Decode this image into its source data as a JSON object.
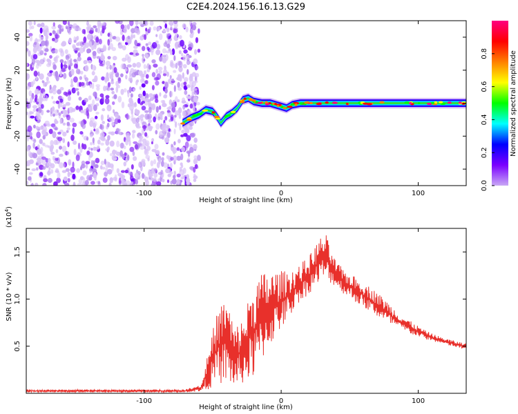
{
  "title": "C2E4.2024.156.16.13.G29",
  "chart_data": [
    {
      "type": "heatmap",
      "xlabel": "Height of straight line (km)",
      "ylabel": "Frequency (Hz)",
      "xlim": [
        -186,
        135
      ],
      "ylim": [
        -50,
        50
      ],
      "x_ticks": [
        -100,
        0,
        100
      ],
      "y_ticks": [
        -40,
        -20,
        0,
        20,
        40
      ],
      "noise_region_x": [
        -186,
        -66
      ],
      "signal_trace": [
        {
          "x": -72,
          "y": -12
        },
        {
          "x": -66,
          "y": -9
        },
        {
          "x": -60,
          "y": -7
        },
        {
          "x": -55,
          "y": -4
        },
        {
          "x": -50,
          "y": -5
        },
        {
          "x": -47,
          "y": -8
        },
        {
          "x": -44,
          "y": -12
        },
        {
          "x": -40,
          "y": -8
        },
        {
          "x": -36,
          "y": -6
        },
        {
          "x": -32,
          "y": -3
        },
        {
          "x": -28,
          "y": 2
        },
        {
          "x": -24,
          "y": 3
        },
        {
          "x": -20,
          "y": 1
        },
        {
          "x": -14,
          "y": 0
        },
        {
          "x": -8,
          "y": 0
        },
        {
          "x": -4,
          "y": -1
        },
        {
          "x": 0,
          "y": -2
        },
        {
          "x": 4,
          "y": -3
        },
        {
          "x": 8,
          "y": -1
        },
        {
          "x": 14,
          "y": 0
        },
        {
          "x": 20,
          "y": 0
        },
        {
          "x": 30,
          "y": 0
        },
        {
          "x": 40,
          "y": 0
        },
        {
          "x": 50,
          "y": 0
        },
        {
          "x": 60,
          "y": 0
        },
        {
          "x": 70,
          "y": 0
        },
        {
          "x": 80,
          "y": 0
        },
        {
          "x": 90,
          "y": 0
        },
        {
          "x": 100,
          "y": 0
        },
        {
          "x": 110,
          "y": 0
        },
        {
          "x": 120,
          "y": 0
        },
        {
          "x": 135,
          "y": 0
        }
      ],
      "colorbar": {
        "label": "Normalized spectral amplitude",
        "range": [
          0,
          1
        ],
        "ticks": [
          "0.0",
          "0.2",
          "0.4",
          "0.6",
          "0.8"
        ],
        "colors": [
          "#ffffff",
          "#c9a8f5",
          "#7a00ff",
          "#0000ff",
          "#00ffff",
          "#00ff00",
          "#ffff00",
          "#ff8000",
          "#ff0000",
          "#ff0080"
        ]
      }
    },
    {
      "type": "line",
      "xlabel": "Height of straight line (km)",
      "ylabel": "SNR (10 * v/v)",
      "y_multiplier": "(x10",
      "y_multiplier_exp": "4",
      "xlim": [
        -186,
        135
      ],
      "ylim": [
        0,
        1.75
      ],
      "x_ticks": [
        -100,
        0,
        100
      ],
      "y_ticks": [
        0.5,
        1.0,
        1.5
      ],
      "y_tick_labels": [
        "0.5",
        "1.0",
        "1.5"
      ],
      "line_color": "#e8302b",
      "noise_floor": 0.02,
      "envelope": [
        {
          "x": -186,
          "lo": 0.01,
          "hi": 0.04
        },
        {
          "x": -70,
          "lo": 0.01,
          "hi": 0.04
        },
        {
          "x": -58,
          "lo": 0.02,
          "hi": 0.1
        },
        {
          "x": -52,
          "lo": 0.05,
          "hi": 0.55
        },
        {
          "x": -46,
          "lo": 0.1,
          "hi": 0.9
        },
        {
          "x": -40,
          "lo": 0.1,
          "hi": 1.05
        },
        {
          "x": -34,
          "lo": 0.05,
          "hi": 0.7
        },
        {
          "x": -28,
          "lo": 0.1,
          "hi": 0.8
        },
        {
          "x": -20,
          "lo": 0.15,
          "hi": 1.2
        },
        {
          "x": -12,
          "lo": 0.4,
          "hi": 1.3
        },
        {
          "x": -4,
          "lo": 0.6,
          "hi": 1.3
        },
        {
          "x": 4,
          "lo": 0.75,
          "hi": 1.3
        },
        {
          "x": 12,
          "lo": 0.95,
          "hi": 1.35
        },
        {
          "x": 20,
          "lo": 1.05,
          "hi": 1.45
        },
        {
          "x": 26,
          "lo": 1.15,
          "hi": 1.6
        },
        {
          "x": 32,
          "lo": 1.2,
          "hi": 1.72
        },
        {
          "x": 38,
          "lo": 1.15,
          "hi": 1.45
        },
        {
          "x": 46,
          "lo": 1.05,
          "hi": 1.3
        },
        {
          "x": 56,
          "lo": 0.95,
          "hi": 1.22
        },
        {
          "x": 66,
          "lo": 0.85,
          "hi": 1.12
        },
        {
          "x": 76,
          "lo": 0.75,
          "hi": 1.0
        },
        {
          "x": 86,
          "lo": 0.68,
          "hi": 0.85
        },
        {
          "x": 96,
          "lo": 0.62,
          "hi": 0.75
        },
        {
          "x": 106,
          "lo": 0.57,
          "hi": 0.66
        },
        {
          "x": 116,
          "lo": 0.53,
          "hi": 0.6
        },
        {
          "x": 126,
          "lo": 0.49,
          "hi": 0.56
        },
        {
          "x": 135,
          "lo": 0.46,
          "hi": 0.53
        }
      ]
    }
  ]
}
